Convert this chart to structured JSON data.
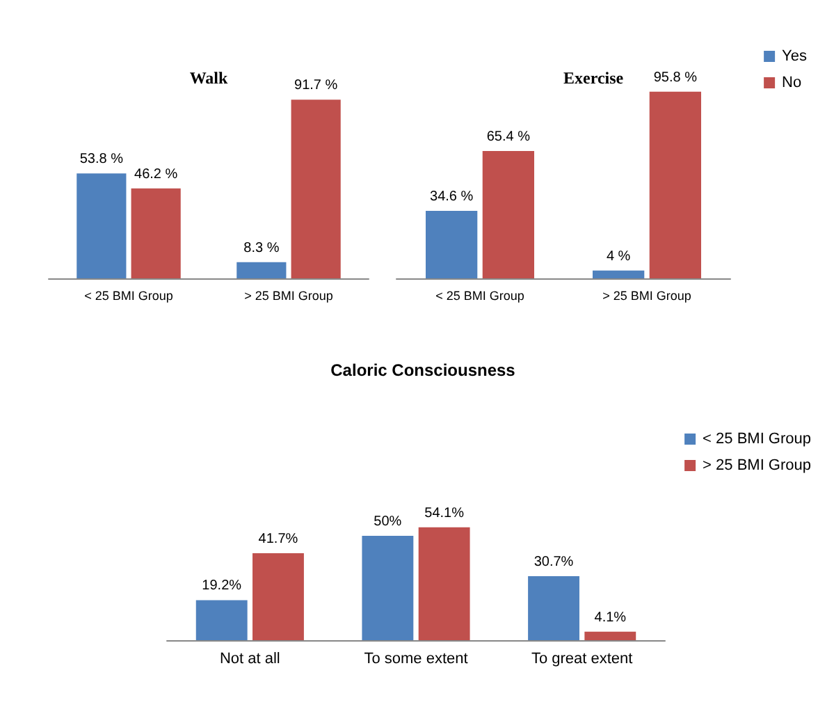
{
  "chart_data": [
    {
      "type": "bar",
      "title": "Walk",
      "categories": [
        "< 25 BMI Group",
        "> 25 BMI Group"
      ],
      "legend": false,
      "series": [
        {
          "color": "#4f81bd",
          "values": [
            53.8,
            8.3
          ],
          "value_labels": [
            "53.8 %",
            "8.3 %"
          ]
        },
        {
          "color": "#c0504d",
          "values": [
            46.2,
            91.7
          ],
          "value_labels": [
            "46.2 %",
            "91.7 %"
          ]
        }
      ]
    },
    {
      "type": "bar",
      "title": "Exercise",
      "categories": [
        "< 25 BMI Group",
        "> 25 BMI Group"
      ],
      "legend": "top right",
      "series": [
        {
          "name": "Yes",
          "color": "#4f81bd",
          "values": [
            34.6,
            4
          ],
          "value_labels": [
            "34.6 %",
            "4 %"
          ]
        },
        {
          "name": "No",
          "color": "#c0504d",
          "values": [
            65.4,
            95.8
          ],
          "value_labels": [
            "65.4 %",
            "95.8 %"
          ]
        }
      ]
    },
    {
      "type": "bar",
      "title": "Caloric Consciousness",
      "categories": [
        "Not at all",
        "To some extent",
        "To great extent"
      ],
      "legend": "right",
      "series": [
        {
          "name": "< 25 BMI Group",
          "color": "#4f81bd",
          "values": [
            19.2,
            50,
            30.7
          ],
          "value_labels": [
            "19.2%",
            "50%",
            "30.7%"
          ]
        },
        {
          "name": "> 25 BMI Group",
          "color": "#c0504d",
          "values": [
            41.7,
            54.1,
            4.1
          ],
          "value_labels": [
            "41.7%",
            "54.1%",
            "4.1%"
          ]
        }
      ]
    }
  ]
}
